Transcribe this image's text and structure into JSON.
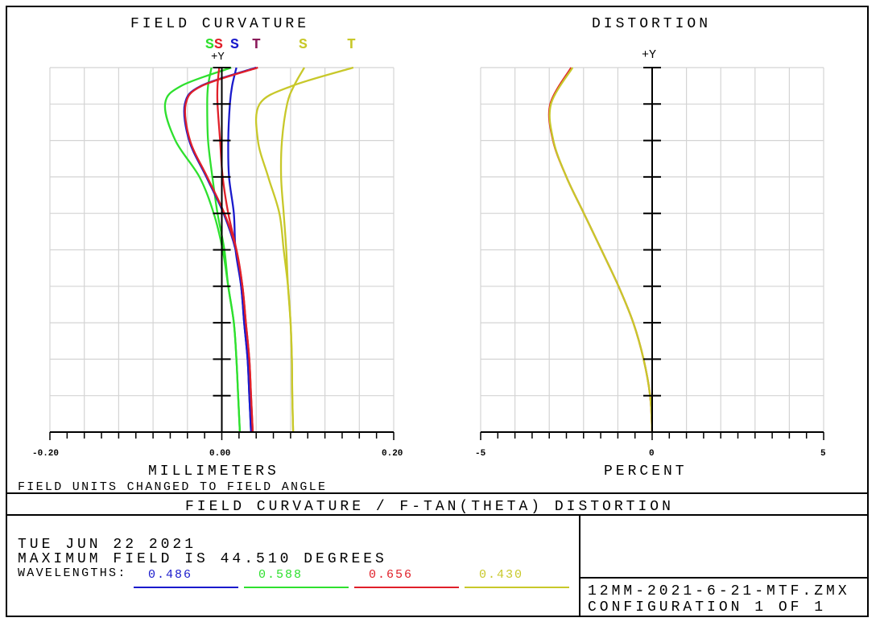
{
  "colors": {
    "blue": "#1a1acc",
    "green": "#2ee02e",
    "red": "#e0202a",
    "yellow": "#c8c82a",
    "purple": "#8a1a5a",
    "grid": "#d4d4d4"
  },
  "footer": {
    "title": "FIELD CURVATURE / F-TAN(THETA) DISTORTION",
    "date": "TUE JUN 22 2021",
    "max_field": "MAXIMUM FIELD IS 44.510 DEGREES",
    "wavelengths_label": "WAVELENGTHS:",
    "wavelengths": [
      {
        "value": "0.486",
        "color": "#1a1acc"
      },
      {
        "value": "0.588",
        "color": "#2ee02e"
      },
      {
        "value": "0.656",
        "color": "#e0202a"
      },
      {
        "value": "0.430",
        "color": "#c8c82a"
      }
    ],
    "file": "12MM-2021-6-21-MTF.ZMX",
    "config": "CONFIGURATION 1 OF 1"
  },
  "chart_data": [
    {
      "type": "line",
      "title": "FIELD CURVATURE",
      "xlabel": "MILLIMETERS",
      "ylabel": "+Y",
      "note": "FIELD UNITS CHANGED TO FIELD ANGLE",
      "xlim": [
        -0.2,
        0.2
      ],
      "ylim": [
        0,
        44.51
      ],
      "x_tick_labels": [
        "-0.20",
        "0.00",
        "0.20"
      ],
      "grid": true,
      "series_labels": [
        {
          "text": "S",
          "color": "#2ee02e"
        },
        {
          "text": "S",
          "color": "#e0202a"
        },
        {
          "text": "S",
          "color": "#1a1acc"
        },
        {
          "text": "T",
          "color": "#8a1a5a"
        },
        {
          "text": "S",
          "color": "#c8c82a"
        },
        {
          "text": "T",
          "color": "#c8c82a"
        }
      ],
      "field_deg": [
        0,
        4.451,
        8.902,
        13.353,
        17.804,
        22.255,
        26.706,
        31.157,
        35.608,
        40.059,
        42.285,
        44.51
      ],
      "series": [
        {
          "wavelength": "0.588",
          "type": "T",
          "color": "#2ee02e",
          "x": [
            0.021,
            0.019,
            0.017,
            0.014,
            0.0075,
            0.001,
            -0.0094,
            -0.026,
            -0.054,
            -0.066,
            -0.047,
            0.011
          ]
        },
        {
          "wavelength": "0.588",
          "type": "S",
          "color": "#2ee02e",
          "x": [
            0.021,
            0.019,
            0.017,
            0.014,
            0.0075,
            0.003,
            -0.005,
            -0.011,
            -0.016,
            -0.017,
            -0.016,
            -0.012
          ]
        },
        {
          "wavelength": "0.486",
          "type": "S",
          "color": "#1a1acc",
          "x": [
            0.034,
            0.032,
            0.03,
            0.026,
            0.0225,
            0.016,
            0.014,
            0.0084,
            0.0075,
            0.0094,
            0.012,
            0.017
          ]
        },
        {
          "wavelength": "0.486",
          "type": "T",
          "color": "#1a1acc",
          "x": [
            0.034,
            0.032,
            0.03,
            0.026,
            0.0225,
            0.016,
            0.002,
            -0.018,
            -0.038,
            -0.043,
            -0.024,
            0.04
          ]
        },
        {
          "wavelength": "0.656",
          "type": "S",
          "color": "#e0202a",
          "x": [
            0.036,
            0.034,
            0.032,
            0.028,
            0.024,
            0.017,
            0.0075,
            0.001,
            -0.002,
            -0.005,
            -0.005,
            -0.003
          ]
        },
        {
          "wavelength": "0.656",
          "type": "T",
          "color": "#e0202a",
          "x": [
            0.036,
            0.034,
            0.032,
            0.028,
            0.024,
            0.017,
            0.003,
            -0.017,
            -0.037,
            -0.042,
            -0.023,
            0.042
          ]
        },
        {
          "wavelength": "0.430",
          "type": "S",
          "color": "#c8c82a",
          "x": [
            0.083,
            0.082,
            0.0815,
            0.08,
            0.077,
            0.075,
            0.072,
            0.069,
            0.07,
            0.076,
            0.084,
            0.096
          ]
        },
        {
          "wavelength": "0.430",
          "type": "T",
          "color": "#c8c82a",
          "x": [
            0.083,
            0.082,
            0.0815,
            0.08,
            0.077,
            0.072,
            0.067,
            0.054,
            0.042,
            0.044,
            0.082,
            0.153
          ]
        }
      ]
    },
    {
      "type": "line",
      "title": "DISTORTION",
      "xlabel": "PERCENT",
      "ylabel": "+Y",
      "xlim": [
        -5,
        5
      ],
      "ylim": [
        0,
        44.51
      ],
      "x_tick_labels": [
        "-5",
        "0",
        "5"
      ],
      "grid": true,
      "field_deg": [
        0,
        4.451,
        8.902,
        13.353,
        17.804,
        22.255,
        26.706,
        31.157,
        35.608,
        40.059,
        44.51
      ],
      "series": [
        {
          "wavelength": "0.656",
          "color": "#e0202a",
          "x": [
            0,
            -0.06,
            -0.25,
            -0.55,
            -0.98,
            -1.48,
            -1.99,
            -2.5,
            -2.89,
            -2.97,
            -2.36
          ]
        },
        {
          "wavelength": "0.430",
          "color": "#c8c82a",
          "x": [
            0,
            -0.06,
            -0.25,
            -0.55,
            -0.98,
            -1.48,
            -1.99,
            -2.5,
            -2.88,
            -2.95,
            -2.32
          ]
        }
      ]
    }
  ]
}
